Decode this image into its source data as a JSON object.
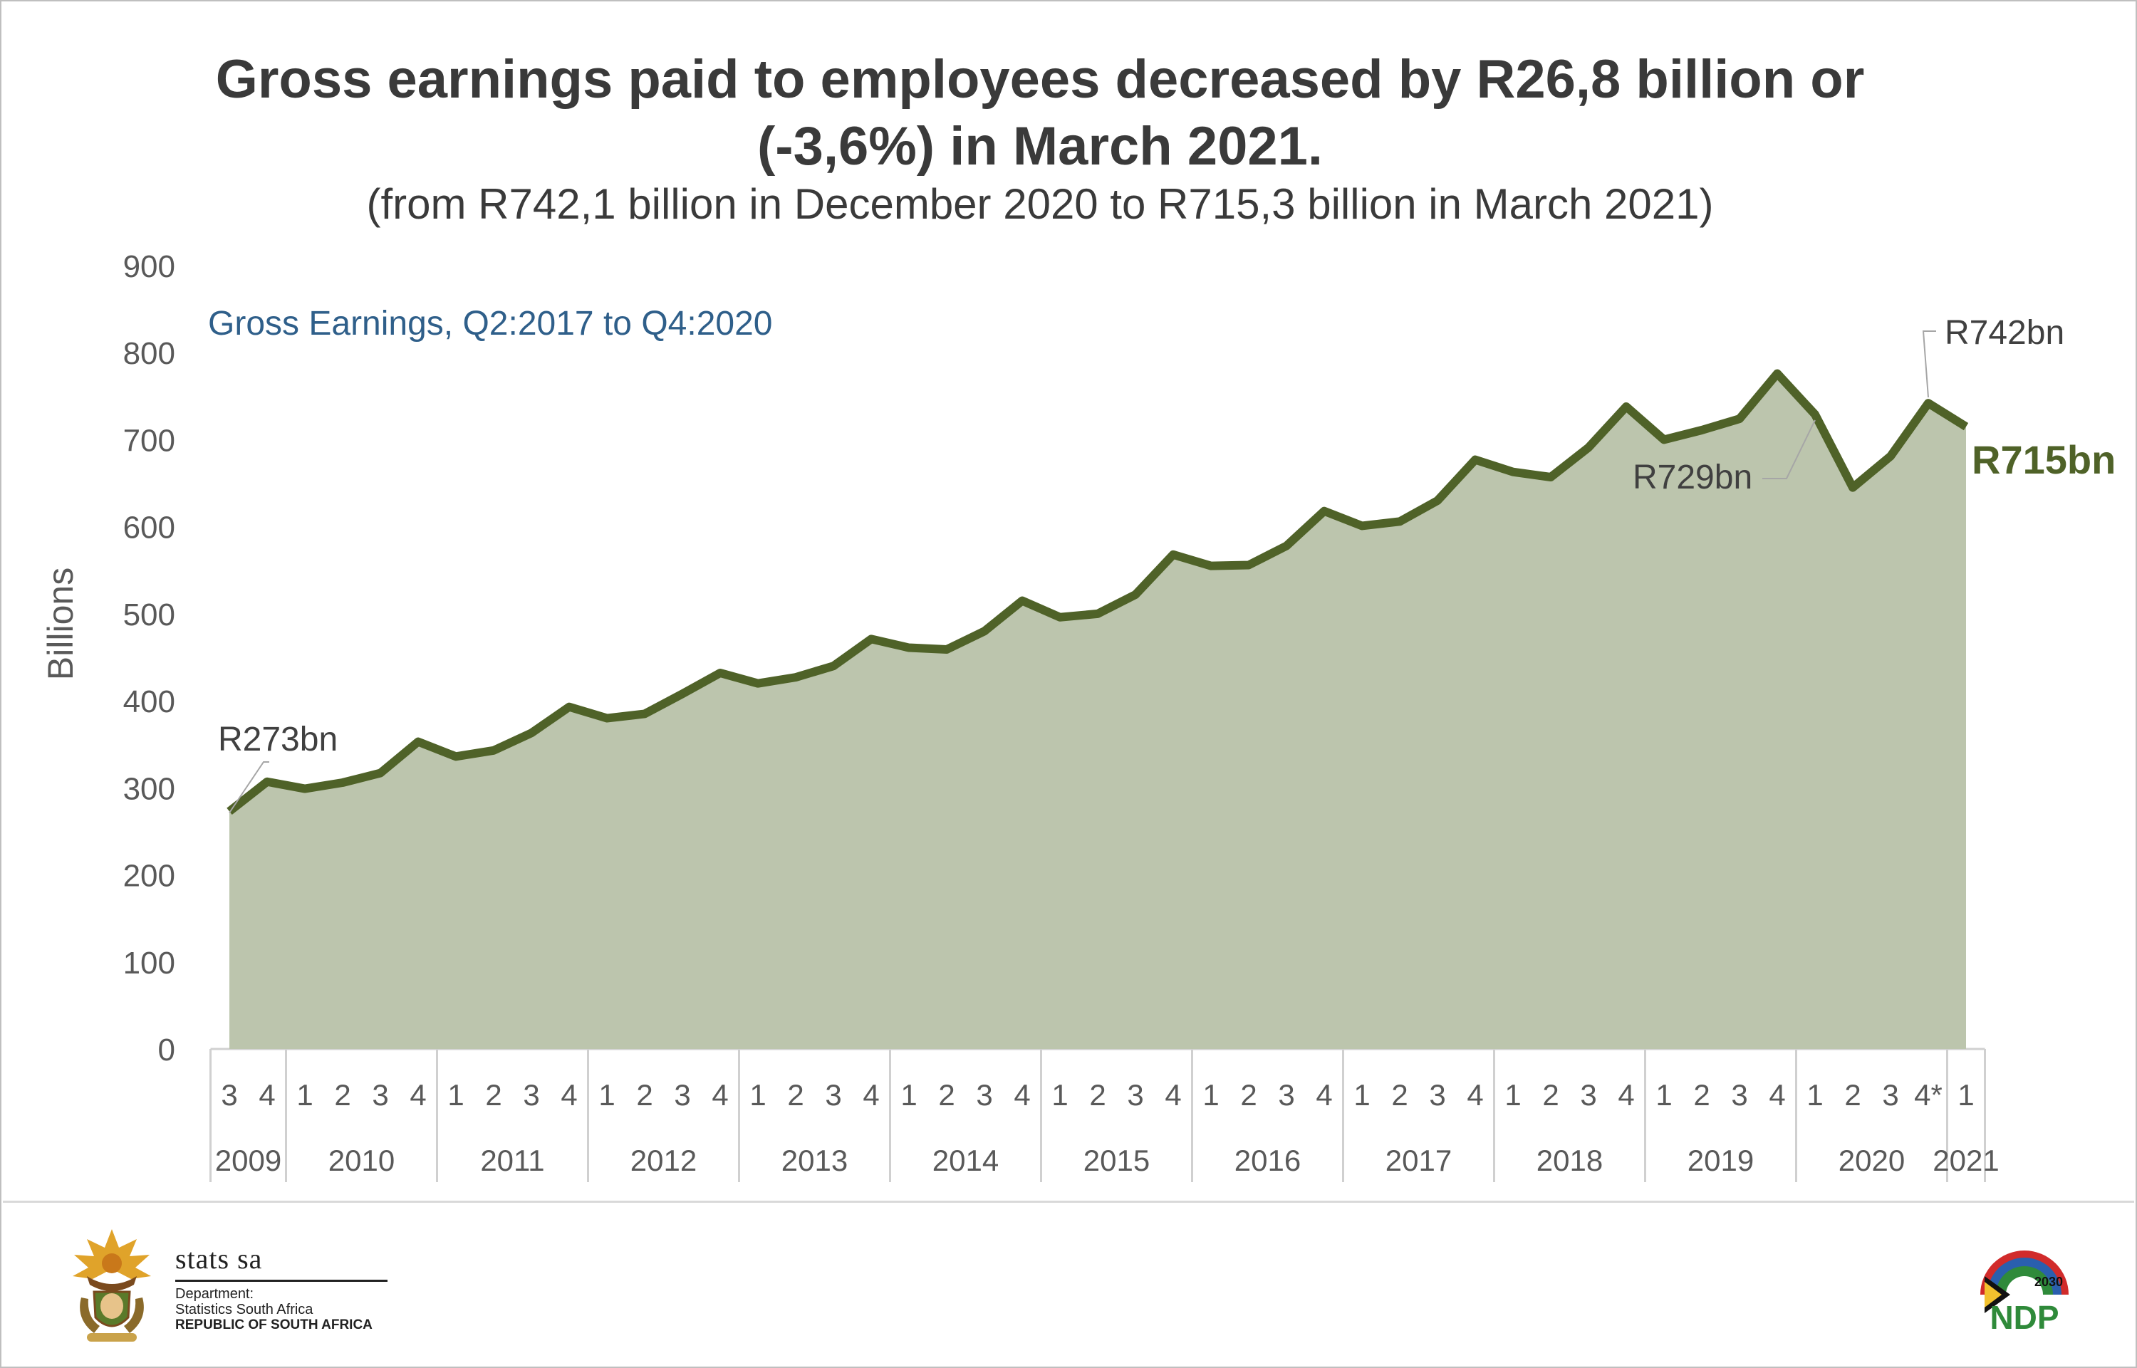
{
  "header": {
    "title_line1": "Gross earnings paid to employees decreased by R26,8 billion or",
    "title_line2": "(-3,6%) in March 2021.",
    "subtitle": "(from R742,1 billion in December 2020 to R715,3 billion in March 2021)"
  },
  "footer": {
    "brand": "stats sa",
    "dept_line1": "Department:",
    "dept_line2": "Statistics South Africa",
    "dept_line3": "REPUBLIC OF SOUTH AFRICA",
    "ndp_year": "2030",
    "ndp_text": "NDP"
  },
  "chart_data": {
    "type": "area",
    "ylabel": "Billions",
    "ylim": [
      0,
      900
    ],
    "yticks": [
      0,
      100,
      200,
      300,
      400,
      500,
      600,
      700,
      800,
      900
    ],
    "inset_label": "Gross Earnings, Q2:2017 to Q4:2020",
    "quarters": [
      "3",
      "4",
      "1",
      "2",
      "3",
      "4",
      "1",
      "2",
      "3",
      "4",
      "1",
      "2",
      "3",
      "4",
      "1",
      "2",
      "3",
      "4",
      "1",
      "2",
      "3",
      "4",
      "1",
      "2",
      "3",
      "4",
      "1",
      "2",
      "3",
      "4",
      "1",
      "2",
      "3",
      "4",
      "1",
      "2",
      "3",
      "4",
      "1",
      "2",
      "3",
      "4",
      "1",
      "2",
      "3",
      "4*",
      "1"
    ],
    "years": [
      {
        "label": "2009",
        "start": 0,
        "count": 2
      },
      {
        "label": "2010",
        "start": 2,
        "count": 4
      },
      {
        "label": "2011",
        "start": 6,
        "count": 4
      },
      {
        "label": "2012",
        "start": 10,
        "count": 4
      },
      {
        "label": "2013",
        "start": 14,
        "count": 4
      },
      {
        "label": "2014",
        "start": 18,
        "count": 4
      },
      {
        "label": "2015",
        "start": 22,
        "count": 4
      },
      {
        "label": "2016",
        "start": 26,
        "count": 4
      },
      {
        "label": "2017",
        "start": 30,
        "count": 4
      },
      {
        "label": "2018",
        "start": 34,
        "count": 4
      },
      {
        "label": "2019",
        "start": 38,
        "count": 4
      },
      {
        "label": "2020",
        "start": 42,
        "count": 4
      },
      {
        "label": "2021",
        "start": 46,
        "count": 1
      }
    ],
    "values": [
      273,
      307,
      299,
      306,
      317,
      353,
      336,
      343,
      363,
      393,
      380,
      385,
      408,
      432,
      420,
      427,
      440,
      471,
      461,
      459,
      480,
      515,
      496,
      500,
      522,
      568,
      555,
      556,
      578,
      618,
      601,
      606,
      630,
      677,
      663,
      657,
      691,
      738,
      700,
      711,
      724,
      776,
      729,
      645,
      681,
      742,
      715
    ],
    "annotations": [
      {
        "text": "R273bn",
        "index": 0
      },
      {
        "text": "R729bn",
        "index": 42
      },
      {
        "text": "R742bn",
        "index": 45
      },
      {
        "text": "R715bn",
        "index": 46
      }
    ],
    "colors": {
      "line": "#4f6228",
      "fill": "#bcc5ad",
      "axis_text": "#595959",
      "inset": "#2f5f8a"
    }
  }
}
